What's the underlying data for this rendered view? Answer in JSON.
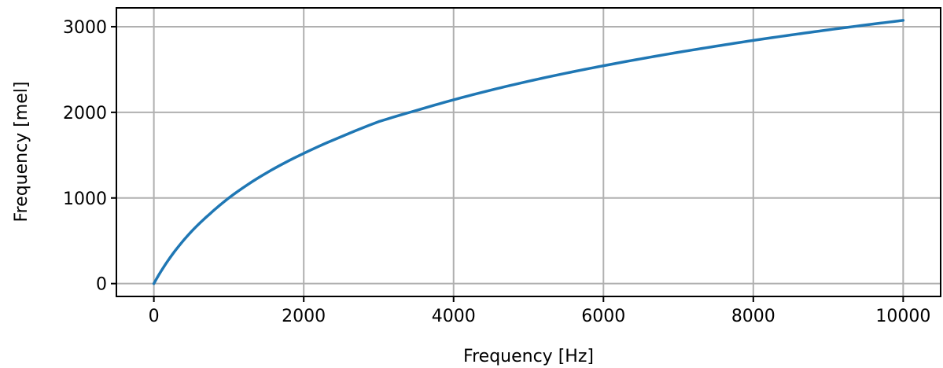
{
  "chart_data": {
    "type": "line",
    "title": "",
    "xlabel": "Frequency [Hz]",
    "ylabel": "Frequency [mel]",
    "xlim": [
      -500,
      10500
    ],
    "ylim": [
      -150,
      3220
    ],
    "xticks": [
      0,
      2000,
      4000,
      6000,
      8000,
      10000
    ],
    "xtick_labels": [
      "0",
      "2000",
      "4000",
      "6000",
      "8000",
      "10000"
    ],
    "yticks": [
      0,
      1000,
      2000,
      3000
    ],
    "ytick_labels": [
      "0",
      "1000",
      "2000",
      "3000"
    ],
    "grid": true,
    "series": [
      {
        "color": "#1f77b4",
        "x": [
          0,
          250,
          500,
          750,
          1000,
          1500,
          2000,
          2500,
          3000,
          3500,
          4000,
          4500,
          5000,
          5500,
          6000,
          6500,
          7000,
          7500,
          8000,
          8500,
          9000,
          9500,
          10000
        ],
        "y": [
          0,
          344,
          607,
          816,
          1000,
          1291,
          1521,
          1715,
          1891,
          2021,
          2146,
          2260,
          2363,
          2457,
          2544,
          2625,
          2701,
          2772,
          2840,
          2903,
          2963,
          3020,
          3074
        ]
      }
    ]
  }
}
